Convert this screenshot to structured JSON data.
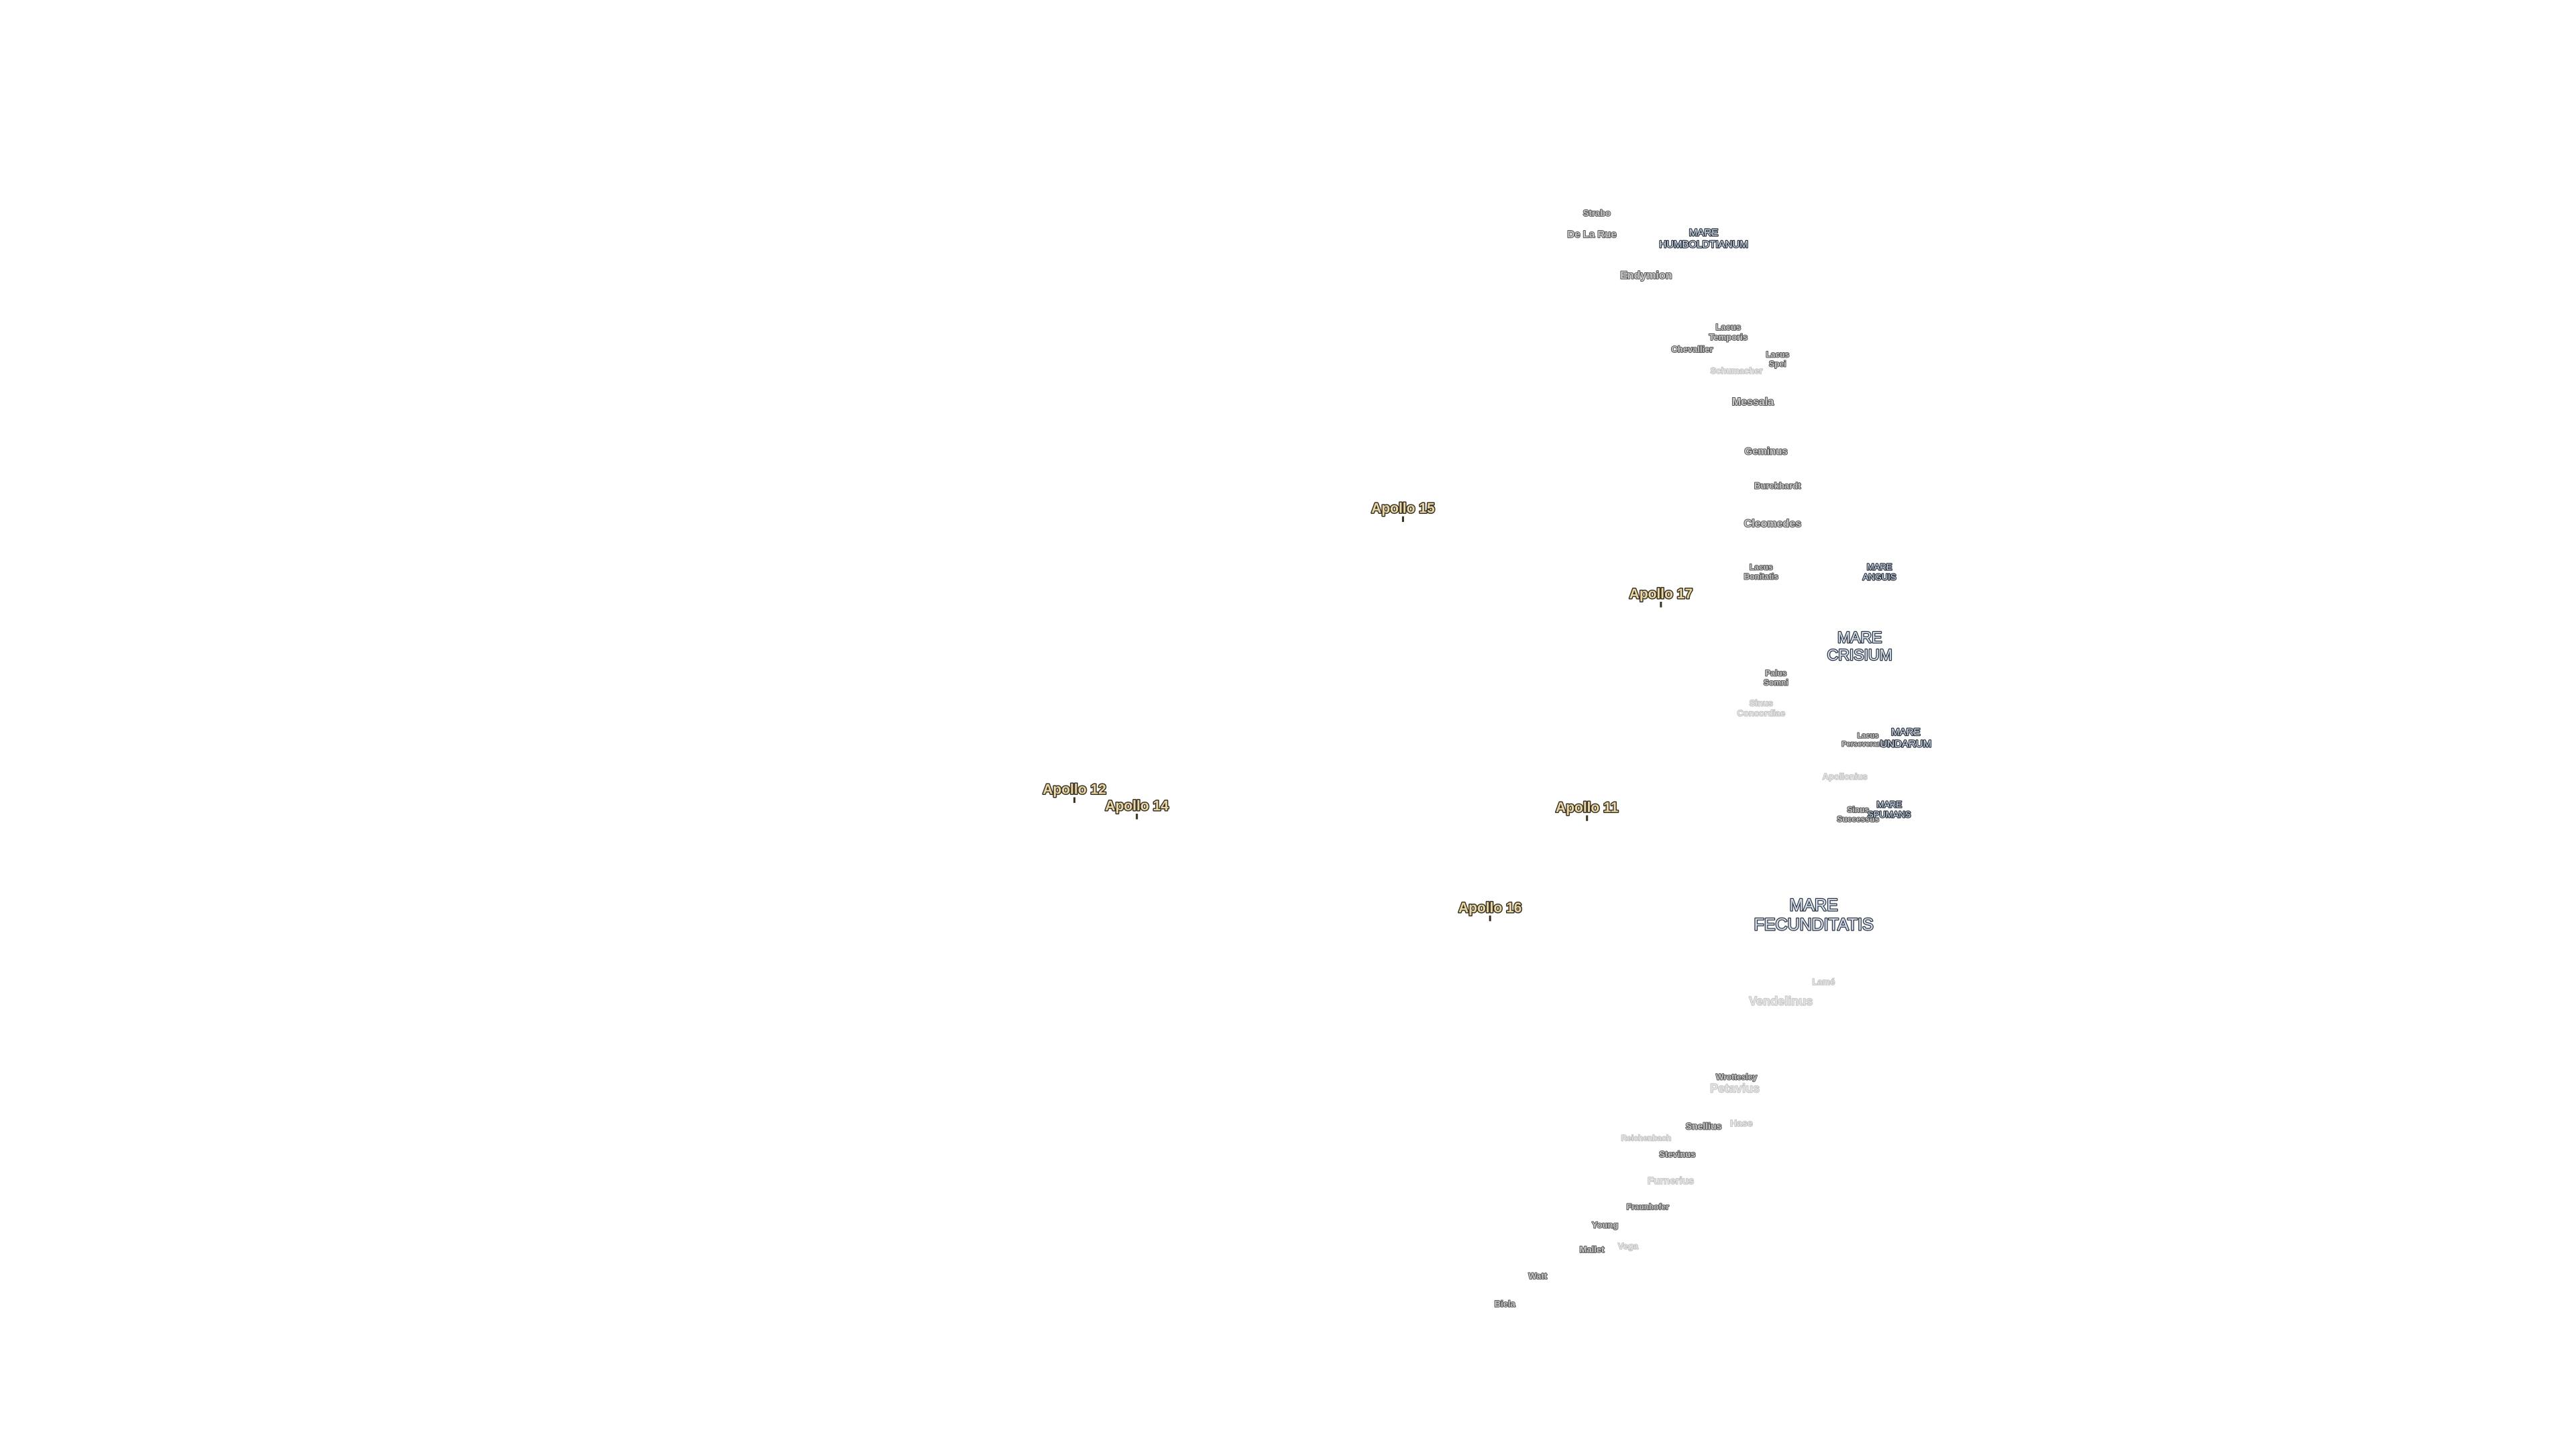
{
  "labels": [
    [
      "Strabo"
    ],
    [
      "De La Rue"
    ],
    [
      "MARE",
      "HUMBOLDTIANUM"
    ],
    [
      "Endymion"
    ],
    [
      "Lacus",
      "Temporis"
    ],
    [
      "Chevallier"
    ],
    [
      "Lacus",
      "Spei"
    ],
    [
      "Schumacher"
    ],
    [
      "Messala"
    ],
    [
      "Geminus"
    ],
    [
      "Burckhardt"
    ],
    [
      "Apollo 15"
    ],
    [
      "Cleomedes"
    ],
    [
      "Lacus",
      "Bonitatis"
    ],
    [
      "MARE",
      "ANGUIS"
    ],
    [
      "Apollo 17"
    ],
    [
      "MARE",
      "CRISIUM"
    ],
    [
      "Palus",
      "Somni"
    ],
    [
      "Sinus",
      "Concordiae"
    ],
    [
      "Lacus",
      "Perseverantiae"
    ],
    [
      "MARE",
      "UNDARUM"
    ],
    [
      "Apollonius"
    ],
    [
      "Apollo 12"
    ],
    [
      "Apollo 14"
    ],
    [
      "Apollo 11"
    ],
    [
      "Sinus",
      "Successus"
    ],
    [
      "MARE",
      "SPUMANS"
    ],
    [
      "Apollo 16"
    ],
    [
      "MARE",
      "FECUNDITATIS"
    ],
    [
      "Lamé"
    ],
    [
      "Vendelinus"
    ],
    [
      "Wrottesley"
    ],
    [
      "Petavius"
    ],
    [
      "Snellius"
    ],
    [
      "Hase"
    ],
    [
      "Reichenbach"
    ],
    [
      "Stevinus"
    ],
    [
      "Furnerius"
    ],
    [
      "Fraunhofer"
    ],
    [
      "Young"
    ],
    [
      "Mallet"
    ],
    [
      "Vega"
    ],
    [
      "Watt"
    ],
    [
      "Biela"
    ]
  ]
}
